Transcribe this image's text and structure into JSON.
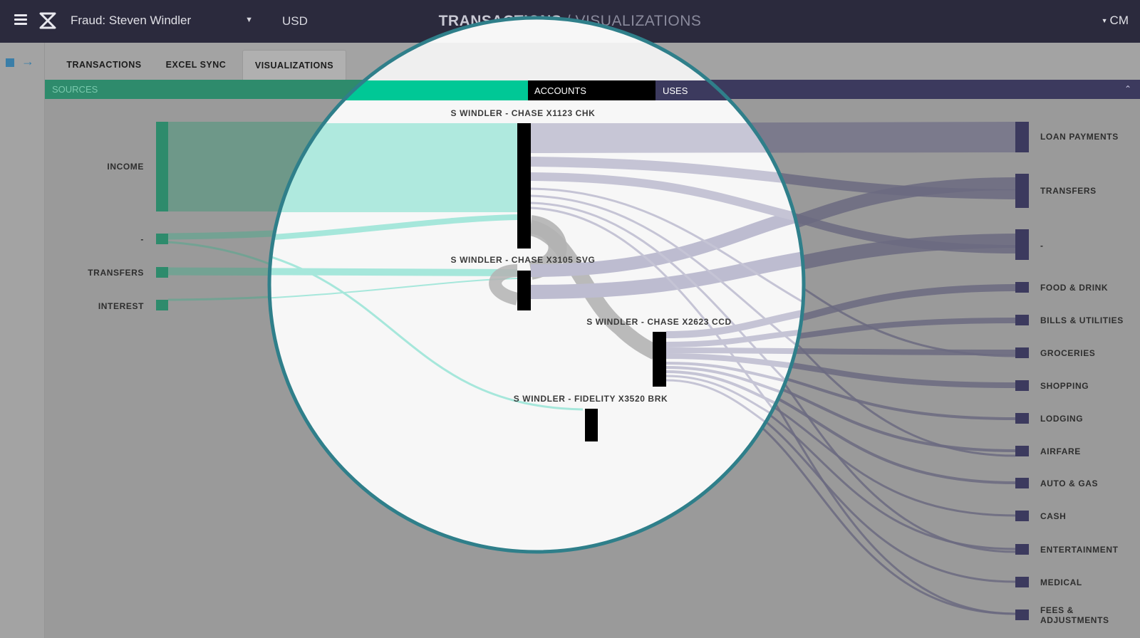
{
  "topbar": {
    "case_name": "Fraud: Steven Windler",
    "currency": "USD",
    "title_section": "TRANSACTIONS",
    "title_separator": " / ",
    "title_page": "VISUALIZATIONS",
    "user_initials": "CM"
  },
  "tabs": [
    {
      "label": "TRANSACTIONS"
    },
    {
      "label": "EXCEL SYNC"
    },
    {
      "label": "VISUALIZATIONS",
      "active": true
    }
  ],
  "columns": {
    "sources": "SOURCES",
    "accounts": "ACCOUNTS",
    "uses": "USES"
  },
  "sankey": {
    "sources": [
      {
        "label": "INCOME"
      },
      {
        "label": "-"
      },
      {
        "label": "TRANSFERS"
      },
      {
        "label": "INTEREST"
      }
    ],
    "accounts": [
      {
        "label": "S WINDLER - CHASE X1123 CHK"
      },
      {
        "label": "S WINDLER - CHASE X3105 SVG"
      },
      {
        "label": "S WINDLER - CHASE X2623 CCD"
      },
      {
        "label": "S WINDLER - FIDELITY X3520 BRK"
      }
    ],
    "uses": [
      {
        "label": "LOAN PAYMENTS"
      },
      {
        "label": "TRANSFERS"
      },
      {
        "label": "-"
      },
      {
        "label": "FOOD & DRINK"
      },
      {
        "label": "BILLS & UTILITIES"
      },
      {
        "label": "GROCERIES"
      },
      {
        "label": "SHOPPING"
      },
      {
        "label": "LODGING"
      },
      {
        "label": "AIRFARE"
      },
      {
        "label": "AUTO & GAS"
      },
      {
        "label": "CASH"
      },
      {
        "label": "ENTERTAINMENT"
      },
      {
        "label": "MEDICAL"
      },
      {
        "label": "FEES & ADJUSTMENTS",
        "lines": [
          "FEES &",
          "ADJUSTMENTS"
        ]
      }
    ]
  },
  "colors": {
    "source_node": "#2e8b6c",
    "source_link": "#4fb896",
    "use_node": "#3c3a5e",
    "use_link": "#6b6a80",
    "magnifier_ring": "#2f7f8a",
    "account_node": "#000000"
  }
}
